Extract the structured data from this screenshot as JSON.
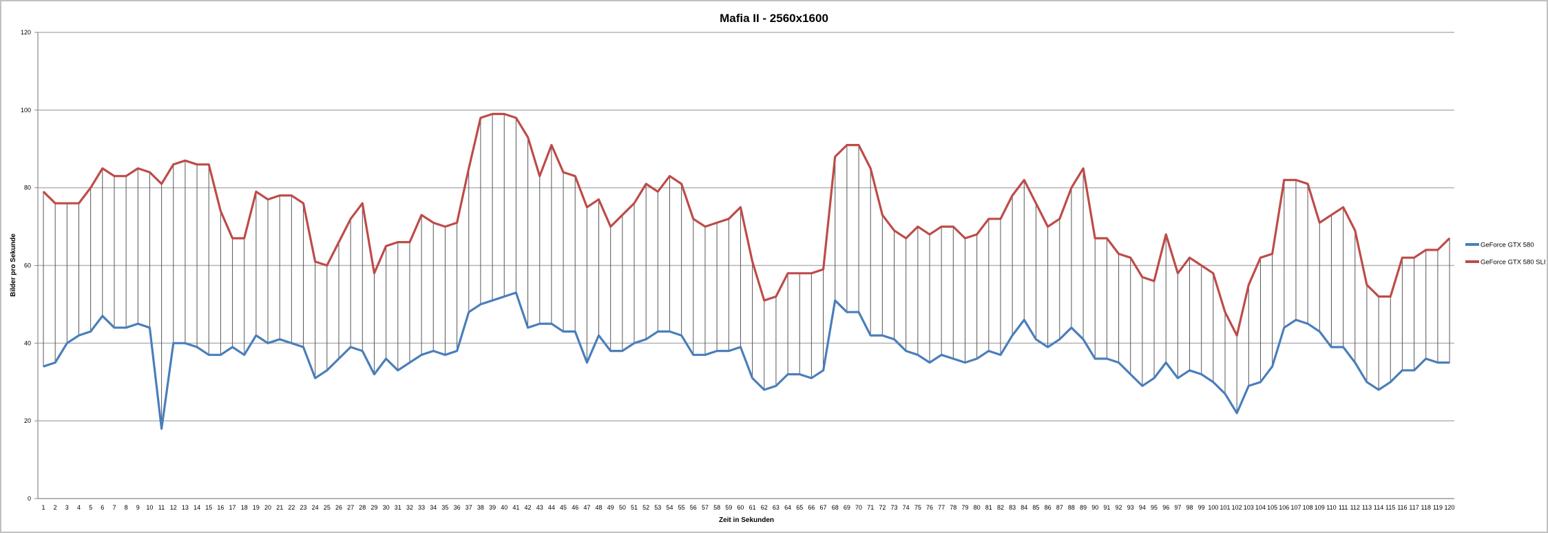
{
  "chart_data": {
    "type": "line",
    "title": "Mafia II - 2560x1600",
    "xlabel": "Zeit in Sekunden",
    "ylabel": "Bilder pro Sekunde",
    "ylim": [
      0,
      120
    ],
    "yticks": [
      0,
      20,
      40,
      60,
      80,
      100,
      120
    ],
    "grid": true,
    "legend_position": "right",
    "high_low_lines": true,
    "x": [
      1,
      2,
      3,
      4,
      5,
      6,
      7,
      8,
      9,
      10,
      11,
      12,
      13,
      14,
      15,
      16,
      17,
      18,
      19,
      20,
      21,
      22,
      23,
      24,
      25,
      26,
      27,
      28,
      29,
      30,
      31,
      32,
      33,
      34,
      35,
      36,
      37,
      38,
      39,
      40,
      41,
      42,
      43,
      44,
      45,
      46,
      47,
      48,
      49,
      50,
      51,
      52,
      53,
      54,
      55,
      56,
      57,
      58,
      59,
      60,
      61,
      62,
      63,
      64,
      65,
      66,
      67,
      68,
      69,
      70,
      71,
      72,
      73,
      74,
      75,
      76,
      77,
      78,
      79,
      80,
      81,
      82,
      83,
      84,
      85,
      86,
      87,
      88,
      89,
      90,
      91,
      92,
      93,
      94,
      95,
      96,
      97,
      98,
      99,
      100,
      101,
      102,
      103,
      104,
      105,
      106,
      107,
      108,
      109,
      110,
      111,
      112,
      113,
      114,
      115,
      116,
      117,
      118,
      119,
      120
    ],
    "series": [
      {
        "name": "GeForce GTX 580",
        "color": "#4a7ebb",
        "values": [
          34,
          35,
          40,
          42,
          43,
          47,
          44,
          44,
          45,
          44,
          18,
          40,
          40,
          39,
          37,
          37,
          39,
          37,
          42,
          40,
          41,
          40,
          39,
          31,
          33,
          36,
          39,
          38,
          32,
          36,
          33,
          35,
          37,
          38,
          37,
          38,
          48,
          50,
          51,
          52,
          53,
          44,
          45,
          45,
          43,
          43,
          35,
          42,
          38,
          38,
          40,
          41,
          43,
          43,
          42,
          37,
          37,
          38,
          38,
          39,
          31,
          28,
          29,
          32,
          32,
          31,
          33,
          51,
          48,
          48,
          42,
          42,
          41,
          38,
          37,
          35,
          37,
          36,
          35,
          36,
          38,
          37,
          42,
          46,
          41,
          39,
          41,
          44,
          41,
          36,
          36,
          35,
          32,
          29,
          31,
          35,
          31,
          33,
          32,
          30,
          27,
          22,
          29,
          30,
          34,
          44,
          46,
          45,
          43,
          39,
          39,
          35,
          30,
          28,
          30,
          33,
          33,
          36,
          35,
          35
        ]
      },
      {
        "name": "GeForce GTX 580 SLI",
        "color": "#be4b48",
        "values": [
          79,
          76,
          76,
          76,
          80,
          85,
          83,
          83,
          85,
          84,
          81,
          86,
          87,
          86,
          86,
          74,
          67,
          67,
          79,
          77,
          78,
          78,
          76,
          61,
          60,
          66,
          72,
          76,
          58,
          65,
          66,
          66,
          73,
          71,
          70,
          71,
          85,
          98,
          99,
          99,
          98,
          93,
          83,
          91,
          84,
          83,
          75,
          77,
          70,
          73,
          76,
          81,
          79,
          83,
          81,
          72,
          70,
          71,
          72,
          75,
          61,
          51,
          52,
          58,
          58,
          58,
          59,
          88,
          91,
          91,
          85,
          73,
          69,
          67,
          70,
          68,
          70,
          70,
          67,
          68,
          72,
          72,
          78,
          82,
          76,
          70,
          72,
          80,
          85,
          67,
          67,
          63,
          62,
          57,
          56,
          68,
          58,
          62,
          60,
          58,
          48,
          42,
          55,
          62,
          63,
          82,
          82,
          81,
          71,
          73,
          75,
          69,
          55,
          52,
          52,
          62,
          62,
          64,
          64,
          67
        ]
      }
    ]
  }
}
